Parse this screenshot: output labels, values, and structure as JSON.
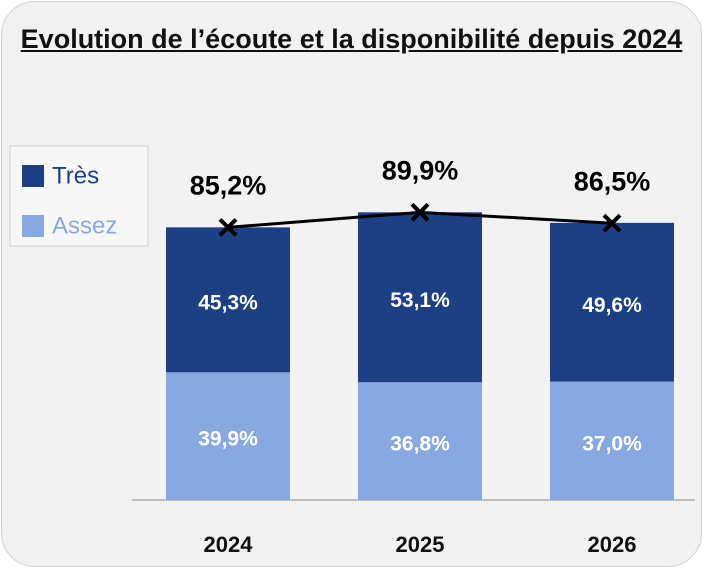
{
  "chart_data": {
    "type": "stacked_bar",
    "title": "Evolution de l’écoute et la disponibilité depuis 2024",
    "categories": [
      "2024",
      "2025",
      "2026"
    ],
    "series": [
      {
        "name": "Assez",
        "color": "#88a8e2",
        "values": [
          39.9,
          36.8,
          37.0
        ],
        "value_labels": [
          "39,9%",
          "36,8%",
          "37,0%"
        ]
      },
      {
        "name": "Très",
        "color": "#1d3f83",
        "values": [
          45.3,
          53.1,
          49.6
        ],
        "value_labels": [
          "45,3%",
          "53,1%",
          "49,6%"
        ]
      }
    ],
    "totals": {
      "color": "#000000",
      "values": [
        85.2,
        89.9,
        86.5
      ],
      "value_labels": [
        "85,2%",
        "89,9%",
        "86,5%"
      ]
    },
    "ylim": [
      0,
      100
    ],
    "legend": "left"
  }
}
